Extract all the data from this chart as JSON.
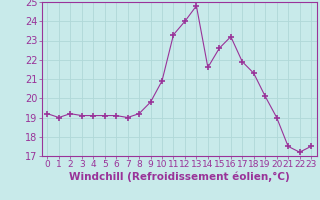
{
  "x": [
    0,
    1,
    2,
    3,
    4,
    5,
    6,
    7,
    8,
    9,
    10,
    11,
    12,
    13,
    14,
    15,
    16,
    17,
    18,
    19,
    20,
    21,
    22,
    23
  ],
  "y": [
    19.2,
    19.0,
    19.2,
    19.1,
    19.1,
    19.1,
    19.1,
    19.0,
    19.2,
    19.8,
    20.9,
    23.3,
    24.0,
    24.8,
    21.6,
    22.6,
    23.2,
    21.9,
    21.3,
    20.1,
    19.0,
    17.5,
    17.2,
    17.5
  ],
  "xlabel": "Windchill (Refroidissement éolien,°C)",
  "ylim": [
    17,
    25
  ],
  "xlim": [
    -0.5,
    23.5
  ],
  "yticks": [
    17,
    18,
    19,
    20,
    21,
    22,
    23,
    24,
    25
  ],
  "xticks": [
    0,
    1,
    2,
    3,
    4,
    5,
    6,
    7,
    8,
    9,
    10,
    11,
    12,
    13,
    14,
    15,
    16,
    17,
    18,
    19,
    20,
    21,
    22,
    23
  ],
  "line_color": "#993399",
  "marker": "+",
  "marker_size": 4,
  "bg_color": "#c8eaea",
  "grid_color": "#b0d8d8",
  "tick_color": "#993399",
  "label_color": "#993399",
  "xlabel_fontsize": 7.5,
  "ytick_fontsize": 7,
  "xtick_fontsize": 6.5
}
